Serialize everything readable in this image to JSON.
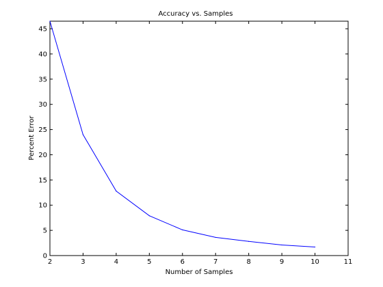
{
  "chart_data": {
    "type": "line",
    "title": "Accuracy vs. Samples",
    "xlabel": "Number of Samples",
    "ylabel": "Percent Error",
    "xlim": [
      2,
      11
    ],
    "ylim": [
      0,
      46.5
    ],
    "xticks": [
      2,
      3,
      4,
      5,
      6,
      7,
      8,
      9,
      10,
      11
    ],
    "yticks": [
      0,
      5,
      10,
      15,
      20,
      25,
      30,
      35,
      40,
      45
    ],
    "grid": false,
    "series": [
      {
        "color": "#0000ff",
        "x": [
          2,
          3,
          4,
          5,
          6,
          7,
          8,
          9,
          10
        ],
        "y": [
          46.5,
          24.0,
          12.8,
          7.9,
          5.1,
          3.6,
          2.8,
          2.1,
          1.7
        ]
      }
    ]
  }
}
